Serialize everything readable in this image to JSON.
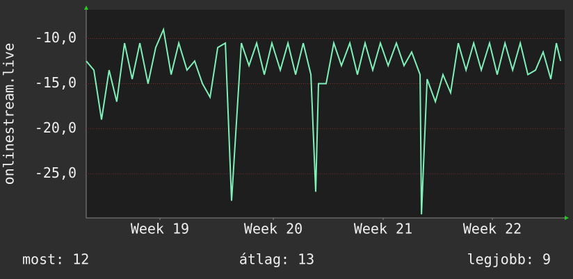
{
  "chart_data": {
    "type": "line",
    "ylabel": "onlinestream.live",
    "x": [
      0,
      0.49,
      0.98,
      1.47,
      1.96,
      2.46,
      2.95,
      3.44,
      3.97,
      4.46,
      4.96,
      5.45,
      5.94,
      6.47,
      6.96,
      7.46,
      7.95,
      8.44,
      8.93,
      9.33,
      9.96,
      10.45,
      10.94,
      11.43,
      11.92,
      12.46,
      12.95,
      13.44,
      13.93,
      14.42,
      14.73,
      14.91,
      15.4,
      15.89,
      16.38,
      16.92,
      17.41,
      17.9,
      18.39,
      18.88,
      19.38,
      19.91,
      20.4,
      20.89,
      21.43,
      21.52,
      21.88,
      22.41,
      22.9,
      23.39,
      23.88,
      24.38,
      24.87,
      25.36,
      25.89,
      26.38,
      26.88,
      27.37,
      27.86,
      28.35,
      28.84,
      29.33,
      29.82,
      30.18,
      30.45
    ],
    "series": [
      {
        "name": "onlinestream.live",
        "color": "#7ff0b8",
        "values": [
          -12.5,
          -13.5,
          -19,
          -13.5,
          -17,
          -10.5,
          -14.5,
          -10.5,
          -15,
          -11,
          -9,
          -14,
          -10.5,
          -13.5,
          -12.5,
          -15,
          -16.5,
          -11,
          -10.5,
          -28,
          -10.5,
          -13,
          -10.5,
          -14,
          -10.5,
          -13.5,
          -10.5,
          -14,
          -10.5,
          -14,
          -27,
          -15,
          -15,
          -10.5,
          -13,
          -10.5,
          -14,
          -10.5,
          -13.5,
          -10.5,
          -13,
          -10.5,
          -13,
          -11.5,
          -14,
          -29.5,
          -14.5,
          -17,
          -14,
          -16,
          -10.5,
          -13.5,
          -10.5,
          -13.5,
          -10.5,
          -14,
          -10.5,
          -13.5,
          -10.5,
          -14,
          -13.5,
          -11.5,
          -14.5,
          -10.5,
          -12.5
        ]
      }
    ],
    "xlim": [
      0,
      30.71
    ],
    "xticks": [
      {
        "value": 4.73,
        "label": "Week 19"
      },
      {
        "value": 12.01,
        "label": "Week 20"
      },
      {
        "value": 19.06,
        "label": "Week 21"
      },
      {
        "value": 26.07,
        "label": "Week 22"
      }
    ],
    "ylim": [
      -29.9,
      -6.8
    ],
    "yticks": [
      {
        "value": -10,
        "label": "-10,0"
      },
      {
        "value": -15,
        "label": "-15,0"
      },
      {
        "value": -20,
        "label": "-20,0"
      },
      {
        "value": -25,
        "label": "-25,0"
      }
    ],
    "grid": true,
    "footer": [
      "most: 12",
      "átlag: 13",
      "legjobb: 9"
    ]
  }
}
